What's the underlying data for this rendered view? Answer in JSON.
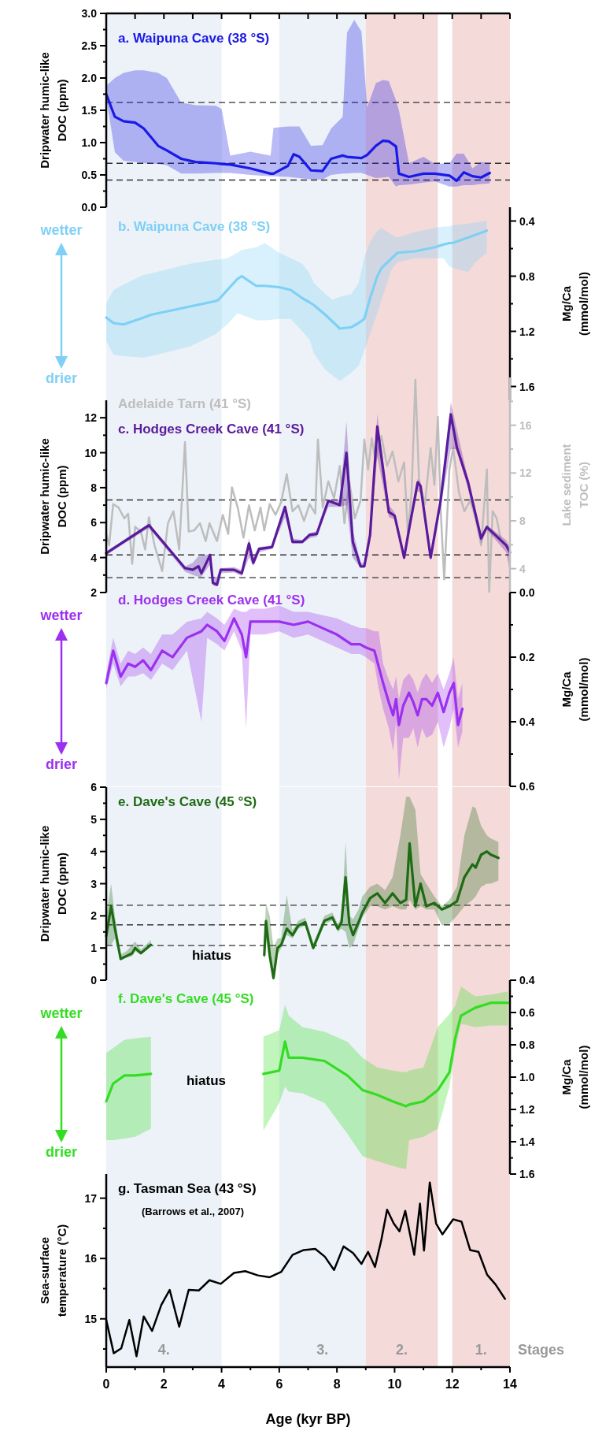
{
  "chart_data": [
    {
      "type": "line",
      "xlim": [
        0,
        14
      ],
      "xticks": [
        0,
        1,
        2,
        3,
        4,
        5,
        6,
        7,
        8,
        9,
        10,
        11,
        12,
        13,
        14
      ],
      "tick_labels": "y",
      "ylim": [
        0,
        3
      ],
      "yticks": [
        {
          "value": 0,
          "label": "0.0"
        },
        {
          "value": 0.25,
          "label": null
        },
        {
          "value": 0.5,
          "label": "0.5"
        },
        {
          "value": 0.75,
          "label": null
        },
        {
          "value": 1,
          "label": "1.0"
        },
        {
          "value": 1.25,
          "label": null
        },
        {
          "value": 1.5,
          "label": "1.5"
        },
        {
          "value": 1.75,
          "label": null
        },
        {
          "value": 2,
          "label": "2.0"
        },
        {
          "value": 2.25,
          "label": null
        },
        {
          "value": 2.5,
          "label": "2.5"
        },
        {
          "value": 2.75,
          "label": null
        },
        {
          "value": 3,
          "label": "3.0"
        }
      ],
      "ylabel": "Dripwater humic-like DOC (ppm)",
      "bands": [
        {
          "axis": "x",
          "from": 0,
          "to": 4,
          "color": "#edf2f8"
        },
        {
          "axis": "x",
          "from": 6,
          "to": 9,
          "color": "#edf2f8"
        },
        {
          "axis": "x",
          "from": 9,
          "to": 11.5,
          "color": "#f5dada"
        },
        {
          "axis": "x",
          "from": 12,
          "to": 14,
          "color": "#f5dada"
        }
      ],
      "ref_lines": [
        {
          "axis": "y",
          "value": 1.62,
          "color": "#333333",
          "line_style": "dashed"
        },
        {
          "axis": "y",
          "value": 0.68,
          "color": "#333333",
          "line_style": "dashed"
        },
        {
          "axis": "y",
          "value": 0.42,
          "color": "#333333",
          "line_style": "dashed"
        }
      ],
      "series": [
        {
          "name": "a. Waipuna Cave (38 °S)",
          "color": "#1a1ae6",
          "x": [
            0,
            0.3,
            0.6,
            1.0,
            1.3,
            1.8,
            2.1,
            2.6,
            3.1,
            3.8,
            4.0,
            4.3,
            5.0,
            5.7,
            5.8,
            6.3,
            6.5,
            6.7,
            7.1,
            7.5,
            7.8,
            8.2,
            8.35,
            8.6,
            8.85,
            9.05,
            9.35,
            9.6,
            9.8,
            10.05,
            10.15,
            10.5,
            11.0,
            11.4,
            11.9,
            12.15,
            12.4,
            12.7,
            13.0,
            13.3
          ],
          "values": [
            1.75,
            1.4,
            1.33,
            1.31,
            1.22,
            0.95,
            0.88,
            0.75,
            0.7,
            0.68,
            0.67,
            0.66,
            0.6,
            0.52,
            0.52,
            0.64,
            0.82,
            0.78,
            0.57,
            0.56,
            0.75,
            0.8,
            0.78,
            0.77,
            0.76,
            0.81,
            0.95,
            1.03,
            1.02,
            0.94,
            0.52,
            0.47,
            0.52,
            0.52,
            0.49,
            0.41,
            0.54,
            0.48,
            0.46,
            0.53
          ],
          "upper": [
            1.88,
            2.0,
            2.08,
            2.12,
            2.12,
            2.08,
            2.0,
            1.62,
            1.58,
            1.57,
            1.52,
            0.8,
            0.86,
            0.8,
            1.23,
            1.25,
            1.25,
            1.25,
            0.95,
            0.96,
            1.22,
            1.4,
            2.7,
            2.9,
            2.72,
            1.55,
            1.92,
            1.97,
            1.95,
            1.65,
            1.5,
            0.68,
            0.78,
            0.67,
            0.68,
            0.83,
            0.83,
            0.6,
            0.7,
            0.68
          ],
          "lower": [
            1.7,
            0.85,
            0.72,
            0.7,
            0.68,
            0.67,
            0.65,
            0.52,
            0.52,
            0.53,
            0.53,
            0.53,
            0.5,
            0.48,
            0.48,
            0.47,
            0.46,
            0.45,
            0.43,
            0.43,
            0.5,
            0.52,
            0.52,
            0.53,
            0.53,
            0.5,
            0.45,
            0.46,
            0.47,
            0.32,
            0.34,
            0.35,
            0.38,
            0.4,
            0.32,
            0.32,
            0.34,
            0.34,
            0.36,
            0.37
          ]
        }
      ]
    },
    {
      "type": "line",
      "xlim": [
        0,
        14
      ],
      "tick_labels": "y",
      "y2lim": [
        1.7,
        0.3
      ],
      "y2ticks": [
        {
          "value": 0.4,
          "label": "0.4"
        },
        {
          "value": 0.6,
          "label": null
        },
        {
          "value": 0.8,
          "label": "0.8"
        },
        {
          "value": 1.0,
          "label": null
        },
        {
          "value": 1.2,
          "label": "1.2"
        },
        {
          "value": 1.4,
          "label": null
        },
        {
          "value": 1.6,
          "label": "1.6"
        }
      ],
      "y2label": "Mg/Ca (mmol/mol)",
      "annotations": [
        "wetter",
        "drier"
      ],
      "bands": [
        {
          "axis": "x",
          "from": 0,
          "to": 4,
          "color": "#edf2f8"
        },
        {
          "axis": "x",
          "from": 6,
          "to": 9,
          "color": "#edf2f8"
        },
        {
          "axis": "x",
          "from": 9,
          "to": 11.5,
          "color": "#f5dada"
        },
        {
          "axis": "x",
          "from": 12,
          "to": 14,
          "color": "#f5dada"
        }
      ],
      "series": [
        {
          "name": "b. Waipuna Cave (38 °S)",
          "color": "#7fd0f5",
          "axis": "y2",
          "x": [
            0,
            0.25,
            0.6,
            1.3,
            1.55,
            2.9,
            3.8,
            3.9,
            4.2,
            4.55,
            4.7,
            5.2,
            5.5,
            6.0,
            6.4,
            6.8,
            7.05,
            7.2,
            7.6,
            7.85,
            8.1,
            8.5,
            8.75,
            8.95,
            9.15,
            9.4,
            9.55,
            9.9,
            10.1,
            10.7,
            11.4,
            11.7,
            11.9,
            12.0,
            12.55,
            12.8,
            13.2
          ],
          "values": [
            1.1,
            1.14,
            1.15,
            1.1,
            1.08,
            1.02,
            0.98,
            0.97,
            0.9,
            0.82,
            0.8,
            0.87,
            0.87,
            0.88,
            0.9,
            0.96,
            0.99,
            1.01,
            1.08,
            1.13,
            1.18,
            1.17,
            1.14,
            1.11,
            0.96,
            0.8,
            0.74,
            0.67,
            0.63,
            0.62,
            0.59,
            0.57,
            0.56,
            0.56,
            0.52,
            0.5,
            0.47
          ],
          "lower": [
            1.0,
            0.9,
            0.86,
            0.79,
            0.78,
            0.71,
            0.68,
            0.68,
            0.67,
            0.63,
            0.61,
            0.59,
            0.56,
            0.63,
            0.67,
            0.71,
            0.78,
            0.85,
            0.93,
            0.97,
            0.95,
            0.93,
            0.85,
            0.66,
            0.55,
            0.47,
            0.45,
            0.5,
            0.52,
            0.48,
            0.45,
            0.44,
            0.44,
            0.43,
            0.42,
            0.41,
            0.4
          ],
          "upper": [
            1.27,
            1.37,
            1.38,
            1.39,
            1.38,
            1.31,
            1.22,
            1.2,
            1.15,
            1.07,
            1.08,
            1.12,
            1.12,
            1.11,
            1.11,
            1.2,
            1.26,
            1.36,
            1.48,
            1.52,
            1.56,
            1.5,
            1.45,
            1.34,
            1.22,
            1.07,
            0.97,
            0.75,
            0.7,
            0.67,
            0.67,
            0.67,
            0.73,
            0.74,
            0.77,
            0.7,
            0.63
          ]
        }
      ]
    },
    {
      "type": "line",
      "xlim": [
        0,
        14
      ],
      "tick_labels": "y",
      "ylim": [
        2,
        13
      ],
      "yticks": [
        2,
        {
          "value": 3,
          "label": null
        },
        4,
        {
          "value": 5,
          "label": null
        },
        6,
        {
          "value": 7,
          "label": null
        },
        8,
        {
          "value": 9,
          "label": null
        },
        10,
        {
          "value": 11,
          "label": null
        },
        12
      ],
      "ylabel": "Dripwater humic-like DOC (ppm)",
      "y2lim": [
        2,
        20
      ],
      "y2ticks": [
        4,
        {
          "value": 6,
          "label": null
        },
        8,
        {
          "value": 10,
          "label": null
        },
        12,
        {
          "value": 14,
          "label": null
        },
        16,
        {
          "value": 18,
          "label": null
        }
      ],
      "y2label": "Lake sediment TOC (%)",
      "bands": [
        {
          "axis": "x",
          "from": 0,
          "to": 4,
          "color": "#edf2f8"
        },
        {
          "axis": "x",
          "from": 6,
          "to": 9,
          "color": "#edf2f8"
        },
        {
          "axis": "x",
          "from": 9,
          "to": 11.5,
          "color": "#f5dada"
        },
        {
          "axis": "x",
          "from": 12,
          "to": 14,
          "color": "#f5dada"
        }
      ],
      "ref_lines": [
        {
          "axis": "y",
          "value": 7.3,
          "color": "#333333",
          "line_style": "dashed"
        },
        {
          "axis": "y",
          "value": 4.15,
          "color": "#333333",
          "line_style": "dashed"
        },
        {
          "axis": "y",
          "value": 2.85,
          "color": "#333333",
          "line_style": "dashed"
        }
      ],
      "series": [
        {
          "name": "Adelaide Tarn (41 °S)",
          "color": "#bdbdbd",
          "axis": "y2",
          "x": [
            0,
            0.1,
            0.24,
            0.43,
            0.63,
            0.76,
            0.9,
            1.0,
            1.2,
            1.35,
            1.48,
            1.68,
            1.94,
            2.14,
            2.33,
            2.53,
            2.73,
            2.86,
            3.05,
            3.25,
            3.45,
            3.58,
            3.84,
            4.04,
            4.23,
            4.36,
            4.56,
            4.76,
            4.95,
            5.15,
            5.35,
            5.48,
            5.67,
            5.87,
            6.07,
            6.26,
            6.46,
            6.66,
            6.86,
            7.05,
            7.25,
            7.34,
            7.51,
            7.7,
            7.9,
            8.1,
            8.26,
            8.43,
            8.62,
            8.82,
            8.95,
            9.08,
            9.21,
            9.34,
            9.54,
            9.74,
            9.93,
            10.13,
            10.33,
            10.46,
            10.59,
            10.72,
            10.85,
            11.05,
            11.25,
            11.38,
            11.5,
            11.6,
            11.72,
            11.9,
            12.03,
            12.23,
            12.42,
            12.62,
            12.81,
            13.0,
            13.2,
            13.28,
            13.4,
            13.54,
            13.67
          ],
          "values": [
            6.9,
            5.95,
            9.4,
            9.1,
            8.2,
            8.6,
            4.4,
            7.5,
            7.1,
            5.6,
            8.3,
            5.9,
            3.8,
            7.8,
            8.8,
            5.6,
            14.6,
            7.1,
            7.2,
            7.8,
            6.3,
            7.8,
            6.3,
            8.5,
            6.9,
            10.8,
            9.1,
            6.6,
            9.3,
            7.2,
            9.1,
            7.2,
            9.4,
            8.5,
            9.6,
            11.9,
            8.8,
            9.3,
            8.0,
            9.4,
            8.6,
            14.8,
            9.1,
            11.3,
            9.9,
            12.6,
            7.8,
            11.3,
            8.2,
            9.7,
            14.8,
            12.3,
            14.9,
            13.0,
            15.1,
            12.6,
            13.8,
            11.3,
            12.9,
            6.9,
            10.4,
            19.8,
            11.3,
            9.4,
            14.1,
            11.0,
            16.7,
            8.8,
            3.1,
            12.3,
            14.1,
            10.4,
            8.8,
            9.7,
            8.2,
            5.95,
            12.3,
            2.0,
            8.8,
            8.2,
            6.6
          ]
        },
        {
          "name": "c. Hodges Creek Cave (41 °S)",
          "color": "#5a1a9c",
          "x": [
            0,
            1.48,
            2.73,
            3.0,
            3.2,
            3.3,
            3.6,
            3.7,
            3.84,
            3.97,
            4.43,
            4.7,
            4.95,
            5.1,
            5.3,
            5.75,
            6.2,
            6.46,
            6.8,
            7.05,
            7.3,
            7.7,
            8.1,
            8.33,
            8.55,
            8.82,
            8.95,
            9.15,
            9.4,
            9.8,
            10.0,
            10.33,
            10.52,
            10.8,
            10.9,
            11.25,
            11.6,
            11.95,
            12.16,
            12.55,
            13.0,
            13.2,
            13.87,
            14.0
          ],
          "values": [
            4.25,
            5.85,
            3.4,
            3.3,
            3.5,
            3.1,
            4.15,
            2.55,
            2.45,
            3.3,
            3.3,
            3.1,
            4.8,
            3.7,
            4.5,
            4.6,
            6.9,
            4.9,
            4.9,
            5.3,
            5.35,
            7.25,
            7.0,
            10.0,
            4.9,
            3.5,
            3.5,
            5.3,
            11.5,
            6.6,
            6.4,
            4.0,
            5.8,
            8.3,
            8.1,
            4.0,
            7.3,
            12.2,
            10.3,
            8.3,
            5.1,
            5.75,
            4.7,
            4.3
          ],
          "lower": [
            4.15,
            5.7,
            3.2,
            3.0,
            2.9,
            2.9,
            3.6,
            2.4,
            2.35,
            3.1,
            3.15,
            2.95,
            4.0,
            3.5,
            4.3,
            4.5,
            6.3,
            4.8,
            4.8,
            5.1,
            5.2,
            6.9,
            6.9,
            7.0,
            4.0,
            3.4,
            3.4,
            5.0,
            9.8,
            6.3,
            6.2,
            3.8,
            5.5,
            7.8,
            7.7,
            3.8,
            6.9,
            10.2,
            10.2,
            7.9,
            4.8,
            5.6,
            4.3,
            3.2
          ],
          "upper": [
            4.35,
            5.95,
            3.5,
            3.7,
            4.1,
            4.1,
            4.2,
            2.9,
            2.9,
            3.4,
            3.45,
            3.3,
            5.1,
            4.1,
            4.6,
            4.7,
            7.0,
            5.1,
            5.0,
            5.4,
            5.5,
            7.3,
            7.3,
            11.8,
            5.6,
            3.7,
            3.7,
            5.5,
            12.2,
            7.0,
            6.6,
            4.2,
            6.1,
            8.5,
            8.3,
            4.3,
            7.6,
            12.9,
            11.3,
            8.5,
            5.3,
            5.85,
            5.0,
            4.6
          ]
        }
      ]
    },
    {
      "type": "line",
      "xlim": [
        0,
        14
      ],
      "tick_labels": "y",
      "y2lim": [
        0.6,
        0
      ],
      "y2ticks": [
        {
          "value": 0,
          "label": "0.0"
        },
        {
          "value": 0.1,
          "label": null
        },
        {
          "value": 0.2,
          "label": "0.2"
        },
        {
          "value": 0.3,
          "label": null
        },
        {
          "value": 0.4,
          "label": "0.4"
        },
        {
          "value": 0.5,
          "label": null
        },
        {
          "value": 0.6,
          "label": "0.6"
        }
      ],
      "y2label": "Mg/Ca (mmol/mol)",
      "annotations": [
        "wetter",
        "drier"
      ],
      "bands": [
        {
          "axis": "x",
          "from": 0,
          "to": 4,
          "color": "#edf2f8"
        },
        {
          "axis": "x",
          "from": 6,
          "to": 9,
          "color": "#edf2f8"
        },
        {
          "axis": "x",
          "from": 9,
          "to": 11.5,
          "color": "#f5dada"
        },
        {
          "axis": "x",
          "from": 12,
          "to": 14,
          "color": "#f5dada"
        }
      ],
      "series": [
        {
          "name": "d. Hodges Creek Cave (41 °S)",
          "color": "#9b30f0",
          "axis": "y2",
          "x": [
            0,
            0.24,
            0.5,
            0.76,
            1.0,
            1.28,
            1.55,
            1.94,
            2.3,
            2.8,
            3.3,
            3.5,
            3.84,
            4.1,
            4.43,
            4.7,
            4.85,
            5.0,
            5.5,
            6.0,
            6.5,
            7.0,
            7.5,
            8.0,
            8.5,
            8.8,
            9.0,
            9.3,
            9.45,
            9.6,
            9.8,
            9.95,
            10.05,
            10.15,
            10.3,
            10.5,
            10.65,
            10.8,
            10.95,
            11.1,
            11.3,
            11.5,
            11.7,
            11.9,
            12.05,
            12.2,
            12.35
          ],
          "values": [
            0.28,
            0.18,
            0.26,
            0.22,
            0.23,
            0.21,
            0.24,
            0.18,
            0.2,
            0.14,
            0.12,
            0.1,
            0.12,
            0.15,
            0.08,
            0.13,
            0.2,
            0.09,
            0.09,
            0.09,
            0.1,
            0.09,
            0.11,
            0.13,
            0.16,
            0.16,
            0.17,
            0.18,
            0.23,
            0.28,
            0.34,
            0.38,
            0.33,
            0.41,
            0.35,
            0.31,
            0.34,
            0.38,
            0.33,
            0.33,
            0.35,
            0.31,
            0.37,
            0.31,
            0.28,
            0.41,
            0.36
          ],
          "lower": [
            0.25,
            0.14,
            0.22,
            0.18,
            0.19,
            0.17,
            0.19,
            0.13,
            0.13,
            0.09,
            0.08,
            0.06,
            0.08,
            0.1,
            0.05,
            0.06,
            0.06,
            0.05,
            0.05,
            0.04,
            0.06,
            0.06,
            0.07,
            0.08,
            0.1,
            0.11,
            0.11,
            0.12,
            0.12,
            0.22,
            0.27,
            0.3,
            0.26,
            0.33,
            0.27,
            0.25,
            0.27,
            0.31,
            0.27,
            0.25,
            0.28,
            0.25,
            0.3,
            0.25,
            0.2,
            0.33,
            0.28
          ],
          "upper": [
            0.3,
            0.22,
            0.29,
            0.26,
            0.26,
            0.25,
            0.27,
            0.22,
            0.24,
            0.18,
            0.4,
            0.14,
            0.16,
            0.18,
            0.12,
            0.18,
            0.42,
            0.13,
            0.13,
            0.12,
            0.14,
            0.13,
            0.15,
            0.17,
            0.19,
            0.19,
            0.2,
            0.22,
            0.3,
            0.36,
            0.42,
            0.49,
            0.4,
            0.58,
            0.45,
            0.45,
            0.42,
            0.48,
            0.42,
            0.45,
            0.44,
            0.4,
            0.48,
            0.42,
            0.36,
            0.48,
            0.43
          ]
        }
      ]
    },
    {
      "type": "line",
      "xlim": [
        0,
        14
      ],
      "tick_labels": "y",
      "ylim": [
        0,
        6
      ],
      "yticks": [
        0,
        {
          "value": 0.5,
          "label": null
        },
        1,
        {
          "value": 1.5,
          "label": null
        },
        2,
        {
          "value": 2.5,
          "label": null
        },
        3,
        {
          "value": 3.5,
          "label": null
        },
        4,
        {
          "value": 4.5,
          "label": null
        },
        5,
        {
          "value": 5.5,
          "label": null
        },
        6
      ],
      "ylabel": "Dripwater humic-like DOC (ppm)",
      "annotations": [
        "hiatus"
      ],
      "bands": [
        {
          "axis": "x",
          "from": 0,
          "to": 4,
          "color": "#edf2f8"
        },
        {
          "axis": "x",
          "from": 6,
          "to": 9,
          "color": "#edf2f8"
        },
        {
          "axis": "x",
          "from": 9,
          "to": 11.5,
          "color": "#f5dada"
        },
        {
          "axis": "x",
          "from": 12,
          "to": 14,
          "color": "#f5dada"
        }
      ],
      "ref_lines": [
        {
          "axis": "y",
          "value": 2.33,
          "color": "#333333",
          "line_style": "dashed"
        },
        {
          "axis": "y",
          "value": 1.72,
          "color": "#333333",
          "line_style": "dashed"
        },
        {
          "axis": "y",
          "value": 1.08,
          "color": "#333333",
          "line_style": "dashed"
        }
      ],
      "series": [
        {
          "name": "e. Dave's Cave (45 °S)",
          "color": "#1e6b14",
          "x": [
            0,
            0.17,
            0.3,
            0.5,
            0.7,
            0.9,
            1.0,
            1.2,
            1.55
          ],
          "values": [
            1.37,
            2.31,
            1.61,
            0.66,
            0.75,
            0.84,
            1.0,
            0.84,
            1.1
          ],
          "upper": [
            2.0,
            3.0,
            2.0,
            0.8,
            0.9,
            1.1,
            1.2,
            0.95,
            1.25
          ],
          "lower": [
            1.1,
            1.1,
            1.3,
            0.65,
            0.7,
            0.75,
            0.9,
            0.8,
            1.05
          ]
        },
        {
          "color": "#1e6b14",
          "x": [
            5.48,
            5.54,
            5.67,
            5.8,
            5.94,
            6.07,
            6.26,
            6.46,
            6.66,
            6.9,
            7.18,
            7.57,
            7.84,
            8.03,
            8.16,
            8.3,
            8.43,
            8.56,
            8.75,
            8.88,
            9.15,
            9.4,
            9.67,
            9.93,
            10.2,
            10.4,
            10.52,
            10.72,
            10.9,
            11.1,
            11.38,
            11.64,
            11.9,
            12.16,
            12.42,
            12.7,
            12.81,
            13.0,
            13.2,
            13.34,
            13.6
          ],
          "values": [
            0.78,
            1.84,
            0.78,
            0.07,
            1.0,
            1.1,
            1.6,
            1.4,
            1.7,
            1.8,
            1.0,
            1.85,
            1.95,
            1.6,
            1.8,
            3.2,
            1.75,
            1.4,
            1.8,
            2.1,
            2.55,
            2.7,
            2.4,
            2.7,
            2.4,
            2.5,
            4.25,
            2.3,
            3.0,
            2.3,
            2.4,
            2.2,
            2.3,
            2.45,
            3.2,
            3.6,
            3.5,
            3.9,
            4.0,
            3.9,
            3.8
          ],
          "upper": [
            1.2,
            2.4,
            2.0,
            1.0,
            1.3,
            1.3,
            2.65,
            1.55,
            1.85,
            1.95,
            1.15,
            2.0,
            2.1,
            1.75,
            1.95,
            4.3,
            2.0,
            1.9,
            2.2,
            2.6,
            2.9,
            3.0,
            2.8,
            3.2,
            4.5,
            5.7,
            5.7,
            5.3,
            3.3,
            3.0,
            2.6,
            2.3,
            2.5,
            2.9,
            4.5,
            5.4,
            5.35,
            4.8,
            4.5,
            4.4,
            4.3
          ],
          "lower": [
            0.6,
            1.3,
            0.5,
            0.0,
            0.8,
            1.0,
            1.4,
            1.3,
            1.6,
            1.7,
            0.95,
            1.75,
            1.85,
            1.5,
            1.6,
            1.5,
            1.0,
            1.1,
            1.6,
            1.95,
            2.3,
            2.3,
            2.2,
            2.3,
            2.2,
            2.2,
            2.5,
            2.2,
            2.3,
            2.2,
            2.2,
            1.7,
            1.75,
            2.0,
            2.3,
            2.5,
            2.6,
            2.9,
            3.0,
            3.0,
            3.1
          ]
        }
      ]
    },
    {
      "type": "line",
      "xlim": [
        0,
        14
      ],
      "tick_labels": "y",
      "y2lim": [
        1.6,
        0.4
      ],
      "y2ticks": [
        {
          "value": 0.4,
          "label": "0.4"
        },
        {
          "value": 0.5,
          "label": null
        },
        {
          "value": 0.6,
          "label": "0.6"
        },
        {
          "value": 0.7,
          "label": null
        },
        {
          "value": 0.8,
          "label": "0.8"
        },
        {
          "value": 0.9,
          "label": null
        },
        {
          "value": 1.0,
          "label": "1.0"
        },
        {
          "value": 1.1,
          "label": null
        },
        {
          "value": 1.2,
          "label": "1.2"
        },
        {
          "value": 1.3,
          "label": null
        },
        {
          "value": 1.4,
          "label": "1.4"
        },
        {
          "value": 1.5,
          "label": null
        },
        {
          "value": 1.6,
          "label": "1.6"
        }
      ],
      "y2label": "Mg/Ca (mmol/mol)",
      "annotations": [
        "wetter",
        "drier",
        "hiatus"
      ],
      "bands": [
        {
          "axis": "x",
          "from": 0,
          "to": 4,
          "color": "#edf2f8"
        },
        {
          "axis": "x",
          "from": 6,
          "to": 9,
          "color": "#edf2f8"
        },
        {
          "axis": "x",
          "from": 9,
          "to": 11.5,
          "color": "#f5dada"
        },
        {
          "axis": "x",
          "from": 12,
          "to": 14,
          "color": "#f5dada"
        }
      ],
      "series": [
        {
          "name": "f. Dave's Cave (45 °S)",
          "color": "#33dd22",
          "axis": "y2",
          "x": [
            0,
            0.24,
            0.63,
            1.0,
            1.55
          ],
          "values": [
            1.15,
            1.04,
            0.99,
            0.99,
            0.98
          ],
          "lower": [
            0.85,
            0.82,
            0.77,
            0.76,
            0.75
          ],
          "upper": [
            1.39,
            1.39,
            1.38,
            1.37,
            1.32
          ]
        },
        {
          "color": "#33dd22",
          "axis": "y2",
          "x": [
            5.45,
            6.0,
            6.2,
            6.33,
            6.8,
            7.57,
            8.36,
            8.89,
            9.4,
            9.93,
            10.4,
            10.5,
            11.0,
            11.5,
            11.9,
            12.1,
            12.3,
            12.8,
            13.34,
            13.93
          ],
          "values": [
            0.98,
            0.96,
            0.78,
            0.88,
            0.88,
            0.9,
            0.99,
            1.08,
            1.11,
            1.15,
            1.18,
            1.17,
            1.15,
            1.08,
            0.97,
            0.76,
            0.62,
            0.57,
            0.54,
            0.54
          ],
          "lower": [
            0.75,
            0.71,
            0.55,
            0.62,
            0.69,
            0.72,
            0.78,
            0.88,
            0.94,
            0.96,
            0.97,
            0.96,
            0.94,
            0.69,
            0.61,
            0.56,
            0.44,
            0.5,
            0.49,
            0.47
          ],
          "upper": [
            1.33,
            1.16,
            1.06,
            1.09,
            1.1,
            1.16,
            1.35,
            1.49,
            1.52,
            1.55,
            1.57,
            1.39,
            1.37,
            1.32,
            1.06,
            0.83,
            0.67,
            0.69,
            0.68,
            0.68
          ]
        }
      ]
    },
    {
      "type": "line",
      "title": "g. Tasman Sea (43 °S)",
      "subtitle": "(Barrows et al., 2007)",
      "xlim": [
        0,
        14
      ],
      "xticks": [
        0,
        {
          "value": 1,
          "label": null
        },
        2,
        {
          "value": 3,
          "label": null
        },
        4,
        {
          "value": 5,
          "label": null
        },
        6,
        {
          "value": 7,
          "label": null
        },
        8,
        {
          "value": 9,
          "label": null
        },
        10,
        {
          "value": 11,
          "label": null
        },
        12,
        {
          "value": 13,
          "label": null
        },
        14
      ],
      "xlabel": "Age (kyr BP)",
      "ylim": [
        14.2,
        17.4
      ],
      "yticks": [
        {
          "value": 14.5,
          "label": null
        },
        15,
        {
          "value": 15.5,
          "label": null
        },
        16,
        {
          "value": 16.5,
          "label": null
        },
        17
      ],
      "ylabel": "Sea-surface temperature (°C)",
      "annotations": [
        "Stages"
      ],
      "bands": [
        {
          "axis": "x",
          "from": 0,
          "to": 4,
          "color": "#edf2f8",
          "label": "4."
        },
        {
          "axis": "x",
          "from": 6,
          "to": 9,
          "color": "#edf2f8",
          "label": "3."
        },
        {
          "axis": "x",
          "from": 9,
          "to": 11.5,
          "color": "#f5dada",
          "label": "2."
        },
        {
          "axis": "x",
          "from": 12,
          "to": 14,
          "color": "#f5dada",
          "label": "1."
        }
      ],
      "series": [
        {
          "color": "#000000",
          "x": [
            0,
            0.26,
            0.52,
            0.8,
            1.05,
            1.3,
            1.59,
            1.91,
            2.2,
            2.53,
            2.86,
            3.21,
            3.58,
            3.97,
            4.43,
            4.82,
            5.26,
            5.67,
            6.07,
            6.46,
            6.85,
            7.25,
            7.58,
            7.9,
            8.23,
            8.56,
            8.85,
            9.08,
            9.32,
            9.54,
            9.74,
            9.97,
            10.17,
            10.37,
            10.68,
            10.88,
            11.02,
            11.22,
            11.44,
            11.66,
            12.03,
            12.32,
            12.62,
            12.91,
            13.21,
            13.5,
            13.83
          ],
          "values": [
            14.98,
            14.43,
            14.51,
            14.98,
            14.38,
            15.04,
            14.8,
            15.23,
            15.48,
            14.87,
            15.48,
            15.47,
            15.64,
            15.58,
            15.76,
            15.79,
            15.72,
            15.69,
            15.78,
            16.06,
            16.14,
            16.16,
            16.03,
            15.81,
            16.2,
            16.09,
            15.91,
            16.11,
            15.86,
            16.31,
            16.81,
            16.58,
            16.45,
            16.79,
            16.06,
            16.91,
            16.13,
            17.26,
            16.58,
            16.4,
            16.65,
            16.61,
            16.14,
            16.11,
            15.73,
            15.57,
            15.33
          ]
        }
      ]
    }
  ]
}
